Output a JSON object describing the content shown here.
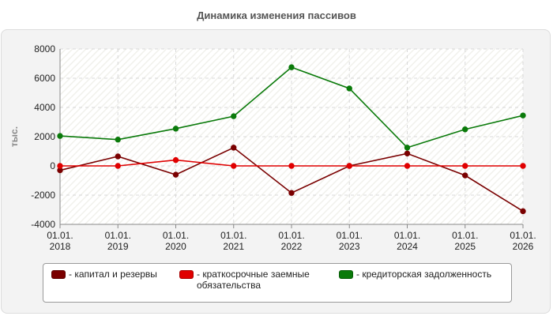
{
  "chart_data": {
    "type": "line",
    "title": "Динамика изменения пассивов",
    "ylabel": "тыс.",
    "xlabel": "",
    "categories": [
      "01.01.\n2018",
      "01.01.\n2019",
      "01.01.\n2020",
      "01.01.\n2021",
      "01.01.\n2022",
      "01.01.\n2023",
      "01.01.\n2024",
      "01.01.\n2025",
      "01.01.\n2026"
    ],
    "ylim": [
      -4000,
      8000
    ],
    "yticks": [
      -4000,
      -2000,
      0,
      2000,
      4000,
      6000,
      8000
    ],
    "grid": true,
    "legend_position": "bottom",
    "series": [
      {
        "name": "- капитал и резервы",
        "color": "#7a0000",
        "values": [
          -300,
          650,
          -600,
          1250,
          -1850,
          0,
          850,
          -650,
          -3100
        ]
      },
      {
        "name": "- краткосрочные заемные обязательства",
        "color": "#e00000",
        "values": [
          0,
          0,
          400,
          0,
          0,
          0,
          0,
          0,
          0
        ]
      },
      {
        "name": "- кредиторская задолженность",
        "color": "#0a7a0a",
        "values": [
          2050,
          1800,
          2550,
          3400,
          6750,
          5300,
          1250,
          2500,
          3450
        ]
      }
    ]
  }
}
